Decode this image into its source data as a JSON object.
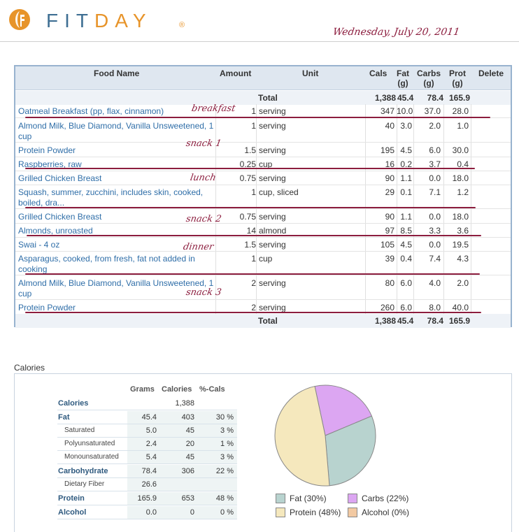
{
  "brand": {
    "fit": "FIT",
    "day": "DAY",
    "reg": "®"
  },
  "date_note": "Wednesday, July 20, 2011",
  "columns": {
    "food": "Food Name",
    "amount": "Amount",
    "unit": "Unit",
    "cals": "Cals",
    "fat": "Fat",
    "fat_unit": "(g)",
    "carbs": "Carbs",
    "carbs_unit": "(g)",
    "prot": "Prot",
    "prot_unit": "(g)",
    "delete": "Delete"
  },
  "totals": {
    "label": "Total",
    "cals": "1,388",
    "fat": "45.4",
    "carbs": "78.4",
    "prot": "165.9"
  },
  "foods": [
    {
      "name": "Oatmeal Breakfast (pp, flax, cinnamon)",
      "amount": "1",
      "unit": "serving",
      "cals": "347",
      "fat": "10.0",
      "carbs": "37.0",
      "prot": "28.0"
    },
    {
      "name": "Almond Milk, Blue Diamond, Vanilla Unsweetened, 1 cup",
      "amount": "1",
      "unit": "serving",
      "cals": "40",
      "fat": "3.0",
      "carbs": "2.0",
      "prot": "1.0"
    },
    {
      "name": "Protein Powder",
      "amount": "1.5",
      "unit": "serving",
      "cals": "195",
      "fat": "4.5",
      "carbs": "6.0",
      "prot": "30.0"
    },
    {
      "name": "Raspberries, raw",
      "amount": "0.25",
      "unit": "cup",
      "cals": "16",
      "fat": "0.2",
      "carbs": "3.7",
      "prot": "0.4"
    },
    {
      "name": "Grilled Chicken Breast",
      "amount": "0.75",
      "unit": "serving",
      "cals": "90",
      "fat": "1.1",
      "carbs": "0.0",
      "prot": "18.0"
    },
    {
      "name": "Squash, summer, zucchini, includes skin, cooked, boiled, dra...",
      "amount": "1",
      "unit": "cup, sliced",
      "cals": "29",
      "fat": "0.1",
      "carbs": "7.1",
      "prot": "1.2"
    },
    {
      "name": "Grilled Chicken Breast",
      "amount": "0.75",
      "unit": "serving",
      "cals": "90",
      "fat": "1.1",
      "carbs": "0.0",
      "prot": "18.0"
    },
    {
      "name": "Almonds, unroasted",
      "amount": "14",
      "unit": "almond",
      "cals": "97",
      "fat": "8.5",
      "carbs": "3.3",
      "prot": "3.6"
    },
    {
      "name": "Swai - 4 oz",
      "amount": "1.5",
      "unit": "serving",
      "cals": "105",
      "fat": "4.5",
      "carbs": "0.0",
      "prot": "19.5"
    },
    {
      "name": "Asparagus, cooked, from fresh, fat not added in cooking",
      "amount": "1",
      "unit": "cup",
      "cals": "39",
      "fat": "0.4",
      "carbs": "7.4",
      "prot": "4.3"
    },
    {
      "name": "Almond Milk, Blue Diamond, Vanilla Unsweetened, 1 cup",
      "amount": "2",
      "unit": "serving",
      "cals": "80",
      "fat": "6.0",
      "carbs": "4.0",
      "prot": "2.0"
    },
    {
      "name": "Protein Powder",
      "amount": "2",
      "unit": "serving",
      "cals": "260",
      "fat": "6.0",
      "carbs": "8.0",
      "prot": "40.0"
    }
  ],
  "meal_notes": {
    "breakfast": "breakfast",
    "snack1": "snack 1",
    "lunch": "lunch",
    "snack2": "snack 2",
    "dinner": "dinner",
    "snack3": "snack 3"
  },
  "calories_panel": {
    "title": "Calories",
    "headers": {
      "grams": "Grams",
      "calories": "Calories",
      "pct": "%-Cals"
    },
    "rows": [
      {
        "label": "Calories",
        "grams": "",
        "calories": "1,388",
        "pct": ""
      },
      {
        "label": "Fat",
        "grams": "45.4",
        "calories": "403",
        "pct": "30 %"
      },
      {
        "label": "Saturated",
        "grams": "5.0",
        "calories": "45",
        "pct": "3 %"
      },
      {
        "label": "Polyunsaturated",
        "grams": "2.4",
        "calories": "20",
        "pct": "1 %"
      },
      {
        "label": "Monounsaturated",
        "grams": "5.4",
        "calories": "45",
        "pct": "3 %"
      },
      {
        "label": "Carbohydrate",
        "grams": "78.4",
        "calories": "306",
        "pct": "22 %"
      },
      {
        "label": "Dietary Fiber",
        "grams": "26.6",
        "calories": "",
        "pct": ""
      },
      {
        "label": "Protein",
        "grams": "165.9",
        "calories": "653",
        "pct": "48 %"
      },
      {
        "label": "Alcohol",
        "grams": "0.0",
        "calories": "0",
        "pct": "0 %"
      }
    ]
  },
  "chart_data": {
    "type": "pie",
    "categories": [
      "Fat",
      "Carbs",
      "Protein",
      "Alcohol"
    ],
    "values": [
      30,
      22,
      48,
      0
    ],
    "legend": [
      "Fat  (30%)",
      "Carbs  (22%)",
      "Protein  (48%)",
      "Alcohol  (0%)"
    ],
    "colors": [
      "#b8d3cf",
      "#dca6f2",
      "#f5e8bd",
      "#f2c9a2"
    ]
  },
  "colors": {
    "link": "#2f6ea8",
    "header_bg": "#dfe7f0",
    "border": "#98b3cf",
    "annotation": "#8c1d3e",
    "brand_blue": "#3e6f93",
    "brand_orange": "#e7942a"
  }
}
